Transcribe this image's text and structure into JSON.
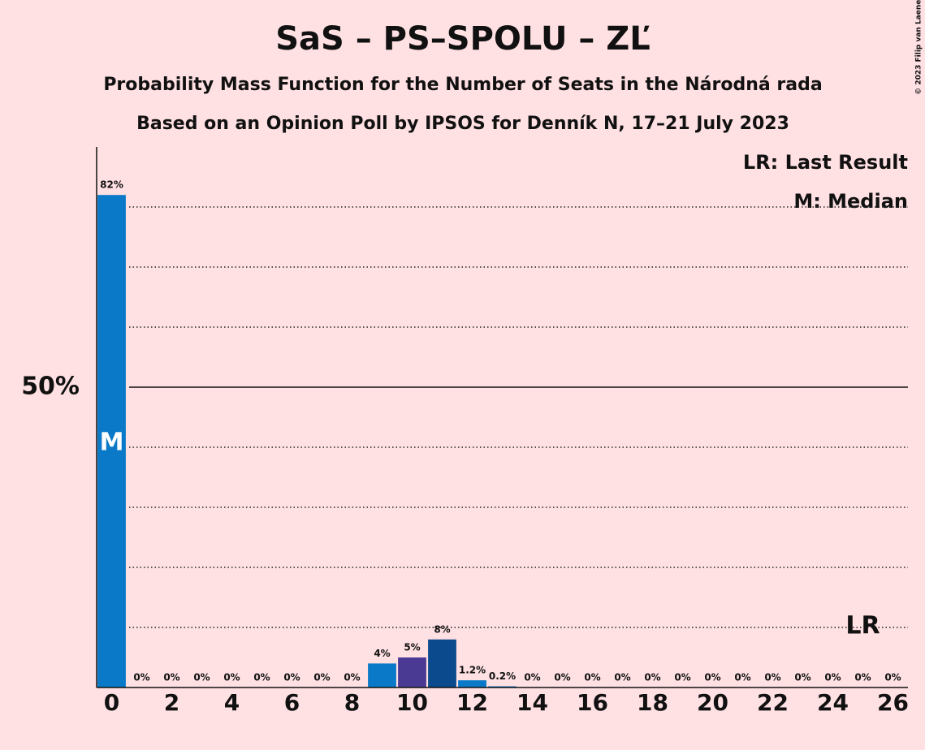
{
  "chart_data": {
    "type": "bar",
    "title": "SaS – PS–SPOLU – ZĽ",
    "subtitle": "Probability Mass Function for the Number of Seats in the Národná rada",
    "source_note": "Based on an Opinion Poll by IPSOS for Denník N, 17–21 July 2023",
    "copyright": "© 2023 Filip van Laenen",
    "categories": [
      0,
      null,
      2,
      null,
      4,
      null,
      6,
      null,
      8,
      null,
      10,
      null,
      12,
      null,
      14,
      null,
      16,
      null,
      18,
      null,
      20,
      null,
      22,
      null,
      24,
      null,
      26
    ],
    "values": [
      82,
      0,
      0,
      0,
      0,
      0,
      0,
      0,
      0,
      4,
      5,
      8,
      1.2,
      0.2,
      0,
      0,
      0,
      0,
      0,
      0,
      0,
      0,
      0,
      0,
      0,
      0,
      0
    ],
    "value_labels": [
      "82%",
      "0%",
      "0%",
      "0%",
      "0%",
      "0%",
      "0%",
      "0%",
      "0%",
      "4%",
      "5%",
      "8%",
      "1.2%",
      "0.2%",
      "0%",
      "0%",
      "0%",
      "0%",
      "0%",
      "0%",
      "0%",
      "0%",
      "0%",
      "0%",
      "0%",
      "0%",
      "0%"
    ],
    "colors": [
      "#0a7ac8",
      "#0a7ac8",
      "#0a7ac8",
      "#0a7ac8",
      "#0a7ac8",
      "#0a7ac8",
      "#0a7ac8",
      "#0a7ac8",
      "#0a7ac8",
      "#0a7ac8",
      "#4a3a94",
      "#0b4a8c",
      "#0a7ac8",
      "#0a7ac8",
      "#0a7ac8",
      "#0a7ac8",
      "#0a7ac8",
      "#0a7ac8",
      "#0a7ac8",
      "#0a7ac8",
      "#0a7ac8",
      "#0a7ac8",
      "#0a7ac8",
      "#0a7ac8",
      "#0a7ac8",
      "#0a7ac8",
      "#0a7ac8"
    ],
    "ylim": [
      0,
      90
    ],
    "yticks": [
      {
        "value": 50,
        "label": "50%"
      }
    ],
    "dotted_gridlines": [
      10,
      20,
      30,
      40,
      60,
      70,
      80
    ],
    "median_seat": 0,
    "median_label": "M",
    "last_result_seat": 25,
    "last_result_label": "LR",
    "legend": [
      "LR: Last Result",
      "M: Median"
    ]
  }
}
